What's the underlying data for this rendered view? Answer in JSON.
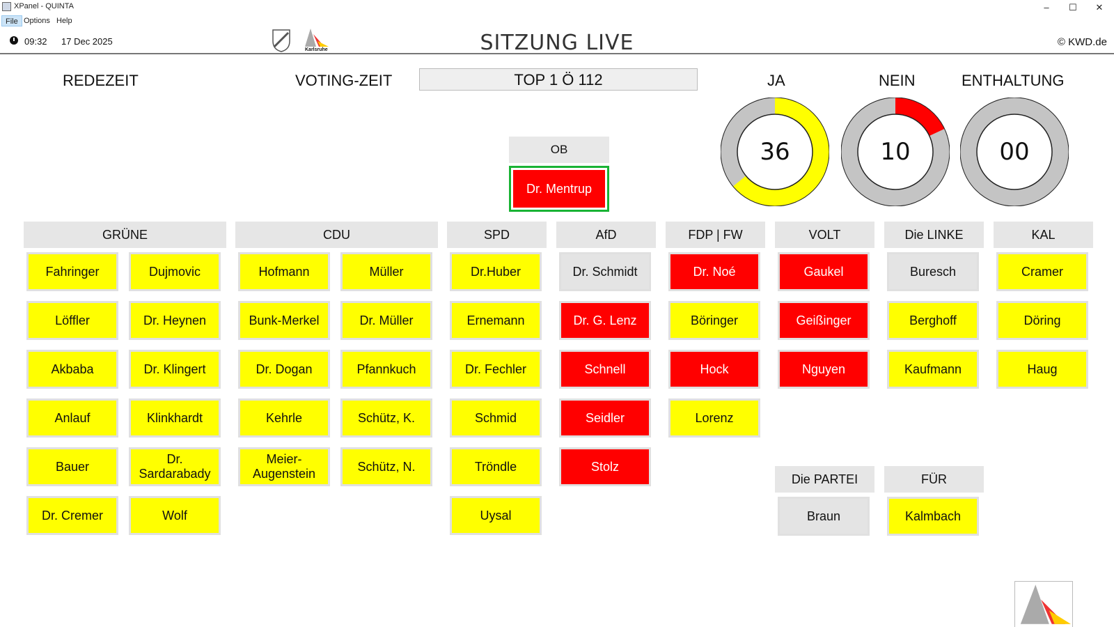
{
  "window": {
    "title": "XPanel - QUINTA",
    "controls": [
      "–",
      "☐",
      "✕"
    ]
  },
  "menu": [
    "File",
    "Options",
    "Help"
  ],
  "header": {
    "time": "09:32",
    "date": "17 Dec 2025",
    "session_title": "SITZUNG LIVE",
    "copyright": "© KWD.de",
    "city_logo_text": "Karlsruhe"
  },
  "labels": {
    "redezeit": "REDEZEIT",
    "voting_zeit": "VOTING-ZEIT",
    "agenda_item": "TOP 1 Ö 112"
  },
  "votes": {
    "ja": {
      "label": "JA",
      "count": "36",
      "fraction": 0.64,
      "color": "#ffff00"
    },
    "nein": {
      "label": "NEIN",
      "count": "10",
      "fraction": 0.18,
      "color": "#ff0000"
    },
    "enthaltung": {
      "label": "ENTHALTUNG",
      "count": "00",
      "fraction": 0.0,
      "color": "#ff0000"
    }
  },
  "ob": {
    "header": "OB",
    "name": "Dr. Mentrup",
    "vote": "no"
  },
  "status_colors": {
    "yes": "#ffff00",
    "no": "#ff0000",
    "none": "#e4e4e4"
  },
  "parties": [
    {
      "name": "GRÜNE",
      "members": [
        {
          "name": "Fahringer",
          "vote": "yes"
        },
        {
          "name": "Dujmovic",
          "vote": "yes"
        },
        {
          "name": "Löffler",
          "vote": "yes"
        },
        {
          "name": "Dr. Heynen",
          "vote": "yes"
        },
        {
          "name": "Akbaba",
          "vote": "yes"
        },
        {
          "name": "Dr. Klingert",
          "vote": "yes"
        },
        {
          "name": "Anlauf",
          "vote": "yes"
        },
        {
          "name": "Klinkhardt",
          "vote": "yes"
        },
        {
          "name": "Bauer",
          "vote": "yes"
        },
        {
          "name": "Dr. Sardarabady",
          "vote": "yes"
        },
        {
          "name": "Dr. Cremer",
          "vote": "yes"
        },
        {
          "name": "Wolf",
          "vote": "yes"
        }
      ]
    },
    {
      "name": "CDU",
      "members": [
        {
          "name": "Hofmann",
          "vote": "yes"
        },
        {
          "name": "Müller",
          "vote": "yes"
        },
        {
          "name": "Bunk-Merkel",
          "vote": "yes"
        },
        {
          "name": "Dr. Müller",
          "vote": "yes"
        },
        {
          "name": "Dr. Dogan",
          "vote": "yes"
        },
        {
          "name": "Pfannkuch",
          "vote": "yes"
        },
        {
          "name": "Kehrle",
          "vote": "yes"
        },
        {
          "name": "Schütz, K.",
          "vote": "yes"
        },
        {
          "name": "Meier-Augenstein",
          "vote": "yes"
        },
        {
          "name": "Schütz, N.",
          "vote": "yes"
        }
      ]
    },
    {
      "name": "SPD",
      "members": [
        {
          "name": "Dr.Huber",
          "vote": "yes"
        },
        {
          "name": "Ernemann",
          "vote": "yes"
        },
        {
          "name": "Dr. Fechler",
          "vote": "yes"
        },
        {
          "name": "Schmid",
          "vote": "yes"
        },
        {
          "name": "Tröndle",
          "vote": "yes"
        },
        {
          "name": "Uysal",
          "vote": "yes"
        }
      ]
    },
    {
      "name": "AfD",
      "members": [
        {
          "name": "Dr. Schmidt",
          "vote": "none"
        },
        {
          "name": "Dr. G. Lenz",
          "vote": "no"
        },
        {
          "name": "Schnell",
          "vote": "no"
        },
        {
          "name": "Seidler",
          "vote": "no"
        },
        {
          "name": "Stolz",
          "vote": "no"
        }
      ]
    },
    {
      "name": "FDP | FW",
      "members": [
        {
          "name": "Dr. Noé",
          "vote": "no"
        },
        {
          "name": "Böringer",
          "vote": "yes"
        },
        {
          "name": "Hock",
          "vote": "no"
        },
        {
          "name": "Lorenz",
          "vote": "yes"
        }
      ]
    },
    {
      "name": "VOLT",
      "members": [
        {
          "name": "Gaukel",
          "vote": "no"
        },
        {
          "name": "Geißinger",
          "vote": "no"
        },
        {
          "name": "Nguyen",
          "vote": "no"
        }
      ]
    },
    {
      "name": "Die LINKE",
      "members": [
        {
          "name": "Buresch",
          "vote": "none"
        },
        {
          "name": "Berghoff",
          "vote": "yes"
        },
        {
          "name": "Kaufmann",
          "vote": "yes"
        }
      ]
    },
    {
      "name": "KAL",
      "members": [
        {
          "name": "Cramer",
          "vote": "yes"
        },
        {
          "name": "Döring",
          "vote": "yes"
        },
        {
          "name": "Haug",
          "vote": "yes"
        }
      ]
    },
    {
      "name": "Die PARTEI",
      "members": [
        {
          "name": "Braun",
          "vote": "none"
        }
      ]
    },
    {
      "name": "FÜR",
      "members": [
        {
          "name": "Kalmbach",
          "vote": "yes"
        }
      ]
    }
  ]
}
